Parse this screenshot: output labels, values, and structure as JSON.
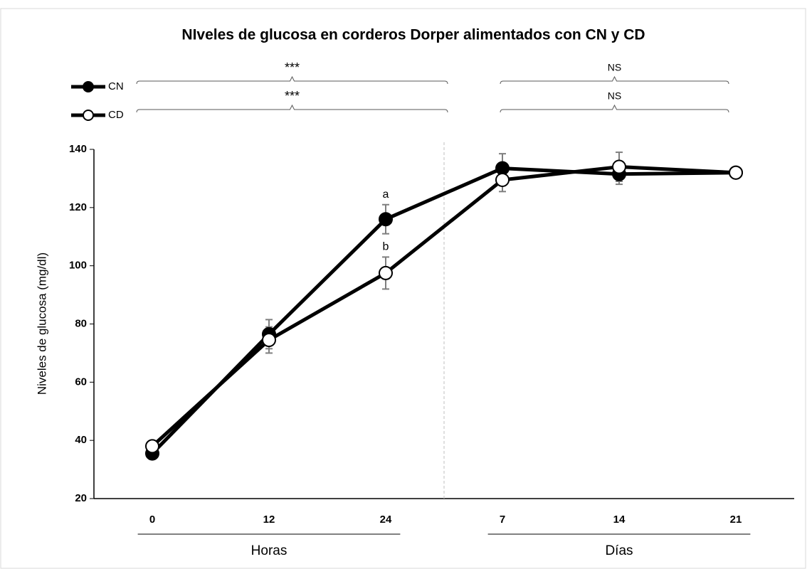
{
  "chart_data": {
    "type": "line",
    "title": "NIveles de glucosa en corderos Dorper alimentados con CN y CD",
    "y_label": "Niveles de glucosa (mg/dl)",
    "categories": [
      "0",
      "12",
      "24",
      "7",
      "14",
      "21"
    ],
    "groups": [
      "Horas",
      "Días"
    ],
    "series": [
      {
        "name": "CN",
        "color": "#000000",
        "marker_fill": "#000000",
        "values": [
          35.5,
          76.5,
          116,
          133.5,
          131.5,
          132
        ],
        "errors": [
          1,
          5,
          5,
          5,
          3.5,
          1
        ],
        "significance": [
          "***",
          "NS"
        ]
      },
      {
        "name": "CD",
        "color": "#000000",
        "marker_fill": "#ffffff",
        "values": [
          38,
          74.5,
          97.5,
          129.5,
          134,
          132
        ],
        "errors": [
          1,
          4.5,
          5.5,
          4,
          5,
          1
        ],
        "significance": [
          "***",
          "NS"
        ]
      }
    ],
    "annotations": [
      {
        "text": "a",
        "series": "CN",
        "category": "24"
      },
      {
        "text": "b",
        "series": "CD",
        "category": "24"
      }
    ],
    "ylim": [
      20,
      140
    ],
    "yticks": [
      20,
      40,
      60,
      80,
      100,
      120,
      140
    ],
    "grid": false
  }
}
